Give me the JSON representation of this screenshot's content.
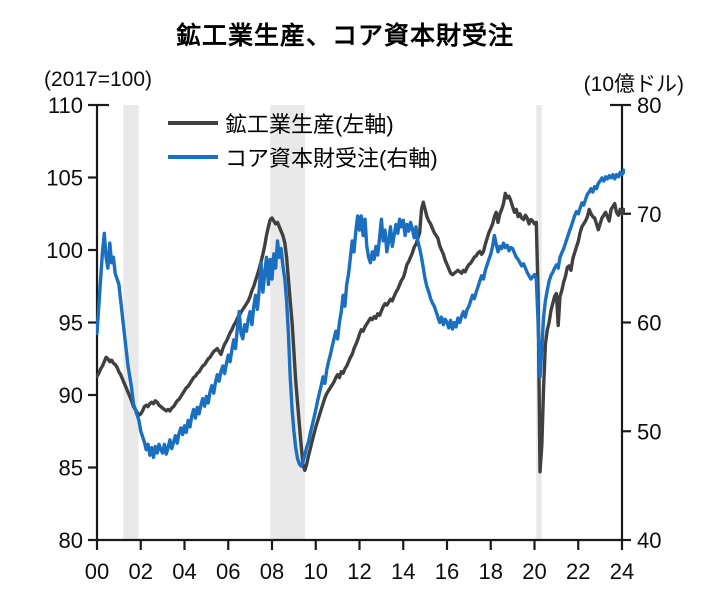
{
  "title": "鉱工業生産、コア資本財受注",
  "left_axis_unit": "(2017=100)",
  "right_axis_unit": "(10億ドル)",
  "colors": {
    "industrial_production": "#404040",
    "core_capital_goods": "#1a6fc0",
    "recession_band": "#e9e9e9",
    "axis": "#1a1a1a"
  },
  "chart_data": {
    "type": "line",
    "title": "鉱工業生産、コア資本財受注",
    "x_start_year": 2000,
    "points_per_year": 12,
    "x_axis": {
      "range": [
        2000,
        2024
      ],
      "tick_years": [
        2000,
        2002,
        2004,
        2006,
        2008,
        2010,
        2012,
        2014,
        2016,
        2018,
        2020,
        2022,
        2024
      ],
      "tick_labels": [
        "00",
        "02",
        "04",
        "06",
        "08",
        "10",
        "12",
        "14",
        "16",
        "18",
        "20",
        "22",
        "24"
      ]
    },
    "left_axis": {
      "label": "(2017=100)",
      "range": [
        80,
        110
      ],
      "ticks": [
        110,
        105,
        100,
        95,
        90,
        85,
        80
      ]
    },
    "right_axis": {
      "label": "(10億ドル)",
      "range": [
        40,
        80
      ],
      "ticks": [
        80,
        70,
        60,
        50,
        40
      ]
    },
    "recession_bands": [
      [
        2001.2,
        2001.9
      ],
      [
        2007.92,
        2009.5
      ],
      [
        2020.08,
        2020.33
      ]
    ],
    "legend_position": "top-center",
    "grid": false,
    "series": [
      {
        "name": "鉱工業生産(左軸)",
        "axis": "left",
        "color": "#404040",
        "values": [
          91.3,
          91.5,
          91.8,
          92.0,
          92.3,
          92.6,
          92.5,
          92.3,
          92.4,
          92.2,
          92.1,
          91.9,
          91.6,
          91.4,
          91.1,
          90.8,
          90.5,
          90.2,
          89.9,
          89.6,
          89.2,
          89.0,
          88.8,
          88.6,
          88.7,
          88.9,
          89.2,
          89.3,
          89.2,
          89.4,
          89.5,
          89.4,
          89.6,
          89.5,
          89.3,
          89.2,
          89.1,
          89.0,
          88.9,
          89.0,
          88.9,
          89.1,
          89.2,
          89.4,
          89.6,
          89.7,
          89.9,
          90.1,
          90.3,
          90.5,
          90.6,
          90.8,
          91.0,
          91.2,
          91.3,
          91.5,
          91.6,
          91.8,
          92.0,
          92.1,
          92.3,
          92.5,
          92.6,
          92.8,
          93.0,
          93.1,
          93.2,
          93.0,
          92.8,
          93.2,
          93.5,
          93.7,
          94.0,
          94.3,
          94.5,
          94.8,
          95.0,
          95.3,
          95.5,
          95.7,
          95.9,
          96.1,
          96.3,
          96.5,
          96.8,
          97.2,
          97.5,
          97.9,
          98.3,
          98.7,
          99.2,
          99.7,
          100.3,
          101.0,
          101.6,
          102.1,
          102.2,
          102.0,
          101.8,
          101.9,
          101.6,
          101.3,
          101.0,
          100.5,
          99.5,
          98.0,
          96.5,
          95.0,
          93.0,
          91.0,
          89.5,
          88.0,
          86.5,
          85.2,
          84.8,
          85.2,
          85.8,
          86.3,
          86.8,
          87.3,
          87.8,
          88.2,
          88.6,
          89.0,
          89.4,
          89.8,
          90.1,
          90.3,
          90.5,
          90.7,
          90.9,
          91.2,
          91.4,
          91.2,
          91.6,
          91.5,
          91.8,
          92.0,
          92.3,
          92.6,
          92.8,
          93.2,
          93.5,
          93.8,
          94.2,
          94.5,
          94.4,
          94.7,
          94.9,
          95.1,
          95.3,
          95.2,
          95.4,
          95.3,
          95.6,
          95.5,
          95.8,
          96.1,
          96.3,
          96.2,
          96.4,
          96.6,
          96.5,
          96.8,
          97.1,
          97.3,
          97.6,
          97.9,
          98.1,
          98.5,
          99.0,
          99.2,
          99.5,
          99.8,
          100.2,
          100.4,
          100.8,
          101.2,
          102.8,
          103.3,
          102.8,
          102.3,
          102.0,
          101.8,
          101.5,
          101.2,
          101.0,
          100.8,
          100.3,
          100.0,
          99.7,
          99.3,
          99.0,
          98.7,
          98.4,
          98.3,
          98.4,
          98.5,
          98.6,
          98.5,
          98.4,
          98.6,
          98.5,
          98.8,
          99.0,
          99.1,
          99.3,
          99.5,
          99.6,
          99.8,
          99.9,
          99.7,
          99.9,
          100.4,
          100.8,
          101.2,
          101.5,
          101.8,
          102.3,
          102.6,
          101.9,
          102.5,
          102.8,
          103.2,
          103.9,
          103.6,
          103.7,
          103.4,
          103.0,
          102.6,
          102.8,
          102.3,
          102.5,
          102.2,
          102.1,
          102.4,
          102.2,
          101.8,
          102.1,
          102.0,
          101.8,
          101.9,
          97.0,
          84.7,
          86.5,
          90.5,
          93.5,
          94.5,
          95.0,
          95.8,
          96.3,
          96.8,
          97.0,
          94.8,
          96.8,
          97.2,
          97.8,
          98.2,
          98.8,
          98.9,
          98.6,
          99.4,
          99.8,
          100.2,
          100.6,
          101.2,
          101.6,
          101.8,
          102.0,
          102.3,
          102.8,
          102.5,
          102.3,
          102.2,
          101.8,
          101.4,
          101.8,
          102.2,
          102.4,
          102.6,
          102.3,
          102.0,
          102.8,
          103.0,
          103.2,
          102.6,
          102.4,
          102.8,
          102.5,
          102.8,
          102.6,
          102.7
        ]
      },
      {
        "name": "コア資本財受注(右軸)",
        "axis": "right",
        "color": "#1a6fc0",
        "values": [
          59.0,
          61.5,
          64.0,
          66.5,
          68.2,
          66.0,
          65.0,
          67.3,
          65.5,
          66.0,
          64.5,
          64.0,
          63.5,
          62.0,
          60.5,
          59.0,
          57.5,
          56.0,
          55.0,
          54.0,
          52.5,
          52.0,
          51.5,
          51.0,
          50.0,
          49.5,
          49.0,
          48.3,
          48.8,
          47.8,
          48.5,
          47.6,
          48.6,
          48.0,
          48.8,
          48.3,
          48.0,
          48.8,
          47.9,
          48.5,
          49.2,
          48.4,
          49.0,
          49.6,
          48.9,
          49.8,
          50.3,
          49.7,
          50.5,
          49.9,
          51.0,
          50.4,
          51.4,
          52.0,
          51.2,
          52.2,
          51.6,
          52.4,
          53.0,
          52.3,
          53.2,
          52.6,
          53.6,
          54.2,
          53.5,
          54.5,
          55.2,
          54.6,
          55.5,
          56.0,
          55.3,
          56.2,
          57.0,
          56.4,
          57.5,
          58.4,
          57.6,
          59.5,
          61.0,
          59.0,
          58.5,
          59.8,
          59.2,
          60.3,
          61.0,
          59.8,
          61.5,
          62.5,
          61.2,
          63.0,
          65.5,
          62.8,
          64.5,
          66.0,
          63.5,
          65.8,
          64.0,
          66.3,
          65.0,
          67.5,
          66.0,
          66.8,
          65.2,
          64.0,
          62.0,
          59.0,
          55.0,
          52.0,
          50.0,
          48.5,
          47.5,
          47.0,
          46.8,
          47.2,
          47.8,
          48.5,
          49.0,
          49.8,
          50.5,
          51.2,
          52.0,
          52.8,
          53.5,
          54.2,
          55.0,
          54.4,
          55.6,
          56.4,
          57.0,
          57.8,
          58.5,
          59.2,
          58.5,
          60.0,
          61.0,
          62.5,
          61.5,
          63.5,
          64.5,
          66.0,
          67.5,
          66.5,
          68.5,
          69.8,
          68.5,
          69.8,
          68.0,
          69.5,
          67.0,
          66.0,
          65.5,
          66.5,
          65.8,
          67.0,
          66.2,
          67.8,
          69.5,
          67.5,
          68.5,
          66.5,
          67.5,
          68.8,
          67.0,
          68.0,
          69.0,
          68.2,
          69.5,
          68.8,
          69.4,
          68.0,
          69.0,
          68.4,
          69.2,
          68.6,
          67.8,
          68.8,
          67.5,
          66.8,
          66.0,
          65.0,
          64.0,
          63.3,
          62.8,
          62.2,
          61.8,
          61.5,
          61.0,
          60.5,
          60.0,
          60.5,
          59.8,
          60.3,
          60.0,
          59.5,
          60.2,
          59.4,
          60.0,
          59.6,
          60.4,
          60.0,
          60.6,
          61.0,
          60.5,
          61.2,
          61.5,
          62.0,
          62.5,
          62.2,
          62.8,
          63.3,
          63.8,
          64.3,
          64.0,
          64.8,
          65.3,
          65.8,
          66.3,
          67.0,
          68.0,
          67.2,
          66.5,
          67.0,
          66.8,
          67.3,
          66.9,
          67.1,
          66.6,
          66.9,
          66.8,
          66.4,
          66.0,
          65.8,
          65.5,
          65.2,
          65.4,
          65.0,
          64.6,
          64.3,
          64.0,
          64.2,
          64.4,
          64.0,
          60.0,
          55.0,
          57.5,
          60.5,
          62.0,
          63.0,
          63.8,
          64.3,
          64.6,
          65.0,
          65.3,
          65.0,
          66.0,
          66.4,
          66.8,
          67.3,
          67.8,
          68.3,
          68.8,
          69.3,
          69.8,
          70.2,
          70.0,
          70.5,
          71.0,
          70.8,
          71.3,
          71.8,
          72.0,
          72.3,
          72.0,
          72.5,
          72.3,
          72.8,
          73.0,
          73.3,
          73.0,
          73.4,
          73.2,
          73.5,
          73.3,
          73.6,
          73.2,
          73.6,
          73.4,
          73.8,
          73.6,
          74.0,
          73.8,
          74.2
        ]
      }
    ]
  }
}
